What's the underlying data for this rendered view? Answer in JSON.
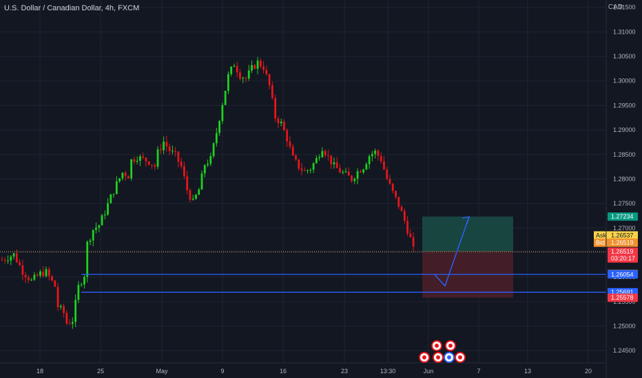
{
  "header": {
    "title": "U.S. Dollar / Canadian Dollar, 4h, FXCM",
    "currency": "CAD"
  },
  "colors": {
    "up": "#1fd11f",
    "down": "#e5171b",
    "background": "#131722",
    "grid": "#1f2433",
    "axis_text": "#b2b5be",
    "level_line": "#2962ff",
    "price_line": "#f0b35a",
    "profit_zone": "#1b4d47",
    "loss_zone": "#4c2029",
    "arrow": "#2962ff"
  },
  "chart_data": {
    "type": "candlestick",
    "title": "U.S. Dollar / Canadian Dollar, 4h, FXCM",
    "y_axis": {
      "label": "CAD",
      "ylim": [
        1.2425,
        1.3165
      ],
      "side": "right",
      "ticks": [
        "1.24500",
        "1.25000",
        "1.25500",
        "1.26000",
        "1.26500",
        "1.27000",
        "1.27500",
        "1.28000",
        "1.28500",
        "1.29000",
        "1.29500",
        "1.30000",
        "1.30500",
        "1.31000",
        "1.31500"
      ]
    },
    "x_axis": {
      "ticks": [
        "18",
        "25",
        "May",
        "9",
        "16",
        "23",
        "13:30",
        "Jun",
        "7",
        "13",
        "20"
      ]
    },
    "grid": true,
    "price_path": [
      [
        0,
        1.2635
      ],
      [
        4,
        1.2646
      ],
      [
        7,
        1.2612
      ],
      [
        10,
        1.2592
      ],
      [
        13,
        1.2607
      ],
      [
        15,
        1.261
      ],
      [
        18,
        1.2581
      ],
      [
        19,
        1.254
      ],
      [
        21,
        1.2527
      ],
      [
        22,
        1.2506
      ],
      [
        24,
        1.2512
      ],
      [
        26,
        1.258
      ],
      [
        28,
        1.2605
      ],
      [
        29,
        1.2668
      ],
      [
        31,
        1.2697
      ],
      [
        33,
        1.2706
      ],
      [
        35,
        1.2733
      ],
      [
        37,
        1.2763
      ],
      [
        39,
        1.279
      ],
      [
        41,
        1.2813
      ],
      [
        43,
        1.2807
      ],
      [
        44,
        1.2838
      ],
      [
        46,
        1.2845
      ],
      [
        48,
        1.284
      ],
      [
        50,
        1.2836
      ],
      [
        52,
        1.2826
      ],
      [
        53,
        1.2854
      ],
      [
        55,
        1.2876
      ],
      [
        57,
        1.2858
      ],
      [
        59,
        1.2848
      ],
      [
        61,
        1.2825
      ],
      [
        63,
        1.2778
      ],
      [
        65,
        1.2752
      ],
      [
        67,
        1.2778
      ],
      [
        69,
        1.283
      ],
      [
        71,
        1.284
      ],
      [
        73,
        1.2895
      ],
      [
        75,
        1.2955
      ],
      [
        77,
        1.301
      ],
      [
        79,
        1.3035
      ],
      [
        81,
        1.3012
      ],
      [
        83,
        1.3005
      ],
      [
        85,
        1.3025
      ],
      [
        87,
        1.3038
      ],
      [
        89,
        1.3028
      ],
      [
        91,
        1.299
      ],
      [
        93,
        1.2926
      ],
      [
        95,
        1.2913
      ],
      [
        97,
        1.2882
      ],
      [
        99,
        1.2842
      ],
      [
        101,
        1.2825
      ],
      [
        103,
        1.2815
      ],
      [
        105,
        1.2822
      ],
      [
        107,
        1.284
      ],
      [
        109,
        1.2865
      ],
      [
        111,
        1.2845
      ],
      [
        113,
        1.2826
      ],
      [
        115,
        1.2816
      ],
      [
        117,
        1.2808
      ],
      [
        119,
        1.28
      ],
      [
        121,
        1.2815
      ],
      [
        123,
        1.2825
      ],
      [
        125,
        1.2848
      ],
      [
        127,
        1.2855
      ],
      [
        129,
        1.284
      ],
      [
        131,
        1.28
      ],
      [
        133,
        1.2772
      ],
      [
        135,
        1.2747
      ],
      [
        137,
        1.2715
      ],
      [
        139,
        1.2678
      ],
      [
        140,
        1.2655
      ]
    ],
    "last_candle_index": 140,
    "levels": [
      {
        "label": "1.26066",
        "value": 1.26066,
        "color": "#6b7280",
        "line": false
      },
      {
        "label": "1.26054",
        "value": 1.26054,
        "color": "#2962ff",
        "line": true
      },
      {
        "label": "1.25691",
        "value": 1.25691,
        "color": "#2962ff",
        "line": true
      }
    ],
    "price_tags": [
      {
        "label": "1.27234",
        "value": 1.27234,
        "color": "#089981",
        "text_color": "#ffffff"
      },
      {
        "label": "1.26519",
        "value": 1.26519,
        "color": "#f23645",
        "text_color": "#ffffff",
        "sub": "03:20:17"
      },
      {
        "label": "1.25578",
        "value": 1.25578,
        "color": "#f23645",
        "text_color": "#ffffff"
      }
    ],
    "bid_ask": {
      "ask_label": "Ask",
      "ask_value": "1.26537",
      "bid_label": "Bid",
      "bid_value": "1.26519"
    },
    "position": {
      "entry": 1.26519,
      "target": 1.27234,
      "stop": 1.25578
    },
    "projection": [
      [
        1.2605,
        0
      ],
      [
        1.2582,
        1
      ],
      [
        1.2723,
        2
      ]
    ]
  }
}
